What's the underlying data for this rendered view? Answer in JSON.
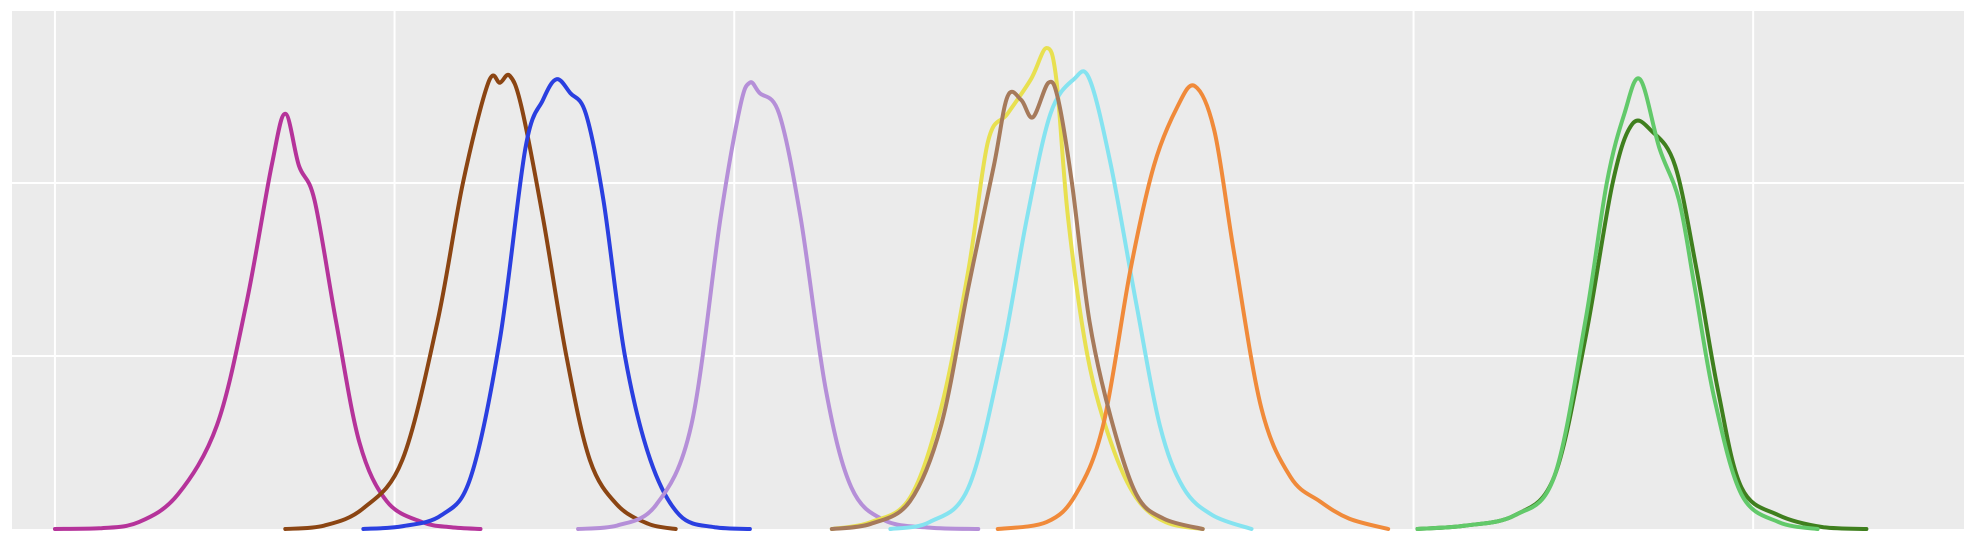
{
  "chart_data": {
    "type": "line",
    "title": "",
    "xlabel": "",
    "ylabel": "",
    "grid": true,
    "background": "#ebebeb",
    "gridColor": "#ffffff",
    "xlim": [
      0,
      100
    ],
    "ylim": [
      0,
      1.5
    ],
    "xgridlines": [
      2.2,
      19.6,
      37.0,
      54.4,
      71.8,
      89.2
    ],
    "ygridlines": [
      0.5,
      1.0,
      1.5
    ],
    "series": [
      {
        "color": "#b5339a",
        "values": [
          [
            2.2,
            0
          ],
          [
            4.5,
            0.002
          ],
          [
            6.5,
            0.02
          ],
          [
            8.5,
            0.1
          ],
          [
            10.5,
            0.3
          ],
          [
            12.0,
            0.65
          ],
          [
            13.3,
            1.05
          ],
          [
            14.0,
            1.2
          ],
          [
            14.7,
            1.05
          ],
          [
            15.5,
            0.95
          ],
          [
            16.6,
            0.6
          ],
          [
            17.8,
            0.25
          ],
          [
            19.2,
            0.08
          ],
          [
            21.0,
            0.02
          ],
          [
            22.5,
            0.005
          ],
          [
            24.0,
            0
          ]
        ]
      },
      {
        "color": "#8b4513",
        "values": [
          [
            14.0,
            0
          ],
          [
            16.0,
            0.01
          ],
          [
            18.0,
            0.06
          ],
          [
            20.0,
            0.2
          ],
          [
            21.8,
            0.6
          ],
          [
            23.1,
            1.0
          ],
          [
            24.4,
            1.29
          ],
          [
            25.0,
            1.29
          ],
          [
            25.5,
            1.31
          ],
          [
            26.1,
            1.22
          ],
          [
            27.2,
            0.9
          ],
          [
            28.4,
            0.5
          ],
          [
            29.6,
            0.2
          ],
          [
            31.0,
            0.07
          ],
          [
            32.6,
            0.015
          ],
          [
            34.0,
            0
          ]
        ]
      },
      {
        "color": "#2a3fe0",
        "values": [
          [
            18.0,
            0
          ],
          [
            20.0,
            0.008
          ],
          [
            22.0,
            0.04
          ],
          [
            23.5,
            0.15
          ],
          [
            25.0,
            0.55
          ],
          [
            26.3,
            1.1
          ],
          [
            27.2,
            1.24
          ],
          [
            27.9,
            1.3
          ],
          [
            28.6,
            1.26
          ],
          [
            29.4,
            1.2
          ],
          [
            30.3,
            0.95
          ],
          [
            31.4,
            0.5
          ],
          [
            32.7,
            0.2
          ],
          [
            34.2,
            0.04
          ],
          [
            36.0,
            0.005
          ],
          [
            37.8,
            0
          ]
        ]
      },
      {
        "color": "#b58fd8",
        "values": [
          [
            29.0,
            0
          ],
          [
            31.0,
            0.01
          ],
          [
            33.0,
            0.07
          ],
          [
            34.8,
            0.3
          ],
          [
            36.3,
            0.9
          ],
          [
            37.3,
            1.22
          ],
          [
            37.8,
            1.29
          ],
          [
            38.3,
            1.26
          ],
          [
            39.3,
            1.2
          ],
          [
            40.4,
            0.9
          ],
          [
            41.7,
            0.4
          ],
          [
            43.0,
            0.12
          ],
          [
            44.7,
            0.025
          ],
          [
            47.0,
            0.004
          ],
          [
            49.5,
            0
          ]
        ]
      },
      {
        "color": "#e8e050",
        "values": [
          [
            42.0,
            0
          ],
          [
            44.0,
            0.02
          ],
          [
            46.0,
            0.09
          ],
          [
            47.6,
            0.35
          ],
          [
            49.0,
            0.75
          ],
          [
            50.0,
            1.12
          ],
          [
            51.0,
            1.2
          ],
          [
            52.2,
            1.3
          ],
          [
            53.0,
            1.39
          ],
          [
            53.5,
            1.3
          ],
          [
            54.1,
            0.9
          ],
          [
            55.1,
            0.5
          ],
          [
            56.3,
            0.25
          ],
          [
            57.6,
            0.09
          ],
          [
            59.1,
            0.02
          ],
          [
            61.0,
            0
          ]
        ]
      },
      {
        "color": "#85e3f0",
        "values": [
          [
            45.0,
            0
          ],
          [
            47.0,
            0.02
          ],
          [
            49.0,
            0.12
          ],
          [
            50.7,
            0.5
          ],
          [
            52.0,
            0.9
          ],
          [
            53.2,
            1.2
          ],
          [
            54.4,
            1.3
          ],
          [
            55.2,
            1.3
          ],
          [
            56.3,
            1.05
          ],
          [
            57.6,
            0.65
          ],
          [
            58.8,
            0.3
          ],
          [
            60.0,
            0.12
          ],
          [
            61.5,
            0.04
          ],
          [
            63.5,
            0
          ]
        ]
      },
      {
        "color": "#f08a3a",
        "values": [
          [
            50.5,
            0
          ],
          [
            53.0,
            0.02
          ],
          [
            54.5,
            0.1
          ],
          [
            55.9,
            0.3
          ],
          [
            57.3,
            0.75
          ],
          [
            58.5,
            1.05
          ],
          [
            59.7,
            1.22
          ],
          [
            60.6,
            1.28
          ],
          [
            61.6,
            1.15
          ],
          [
            62.6,
            0.8
          ],
          [
            64.0,
            0.35
          ],
          [
            65.5,
            0.15
          ],
          [
            67.0,
            0.08
          ],
          [
            68.5,
            0.03
          ],
          [
            70.5,
            0
          ]
        ]
      },
      {
        "color": "#a67a5b",
        "values": [
          [
            42.0,
            0
          ],
          [
            44.0,
            0.015
          ],
          [
            46.0,
            0.08
          ],
          [
            47.6,
            0.3
          ],
          [
            49.0,
            0.7
          ],
          [
            50.3,
            1.05
          ],
          [
            51.0,
            1.25
          ],
          [
            51.7,
            1.24
          ],
          [
            52.3,
            1.19
          ],
          [
            53.1,
            1.29
          ],
          [
            53.6,
            1.24
          ],
          [
            54.3,
            1.0
          ],
          [
            55.2,
            0.6
          ],
          [
            56.3,
            0.32
          ],
          [
            57.6,
            0.1
          ],
          [
            59.0,
            0.03
          ],
          [
            61.0,
            0
          ]
        ]
      },
      {
        "color": "#3f7f1e",
        "values": [
          [
            72.0,
            0
          ],
          [
            74.5,
            0.01
          ],
          [
            77.0,
            0.04
          ],
          [
            79.0,
            0.15
          ],
          [
            80.6,
            0.55
          ],
          [
            82.0,
            1.0
          ],
          [
            83.0,
            1.17
          ],
          [
            84.0,
            1.15
          ],
          [
            85.2,
            1.05
          ],
          [
            86.3,
            0.75
          ],
          [
            87.4,
            0.4
          ],
          [
            88.6,
            0.12
          ],
          [
            90.5,
            0.04
          ],
          [
            92.8,
            0.005
          ],
          [
            95.0,
            0
          ]
        ]
      },
      {
        "color": "#62c96a",
        "values": [
          [
            72.0,
            0
          ],
          [
            74.5,
            0.01
          ],
          [
            77.0,
            0.04
          ],
          [
            79.0,
            0.15
          ],
          [
            80.6,
            0.6
          ],
          [
            81.7,
            1.0
          ],
          [
            82.6,
            1.2
          ],
          [
            83.4,
            1.3
          ],
          [
            84.4,
            1.1
          ],
          [
            85.4,
            0.95
          ],
          [
            86.2,
            0.7
          ],
          [
            87.2,
            0.38
          ],
          [
            88.6,
            0.1
          ],
          [
            90.5,
            0.02
          ],
          [
            92.5,
            0
          ]
        ]
      }
    ]
  }
}
